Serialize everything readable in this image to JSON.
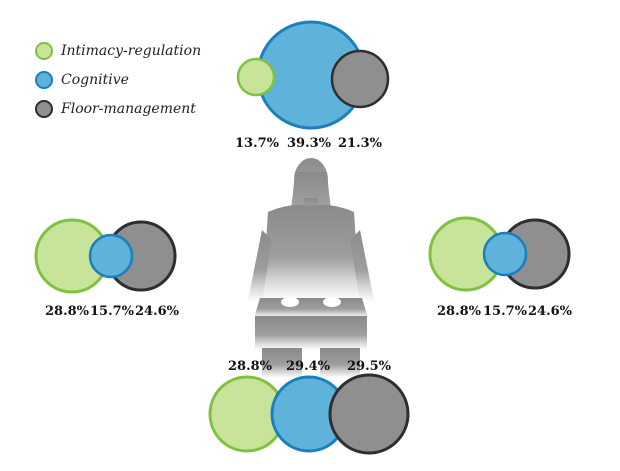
{
  "legend": [
    {
      "label": "Intimacy-regulation",
      "fill": "#c8e39a",
      "stroke": "#7fc242"
    },
    {
      "label": "Cognitive",
      "fill": "#5fb2d9",
      "stroke": "#1a7fbf"
    },
    {
      "label": "Floor-management",
      "fill": "#8f8f8f",
      "stroke": "#2e2e2e"
    }
  ],
  "groups": {
    "top": {
      "intimacy": "13.7%",
      "cognitive": "39.3%",
      "floor": "21.3%"
    },
    "left": {
      "intimacy": "28.8%",
      "cognitive": "15.7%",
      "floor": "24.6%"
    },
    "right": {
      "intimacy": "28.8%",
      "cognitive": "15.7%",
      "floor": "24.6%"
    },
    "bottom": {
      "intimacy": "28.8%",
      "cognitive": "29.4%",
      "floor": "29.5%"
    }
  },
  "figure_icon": "seated-person-silhouette"
}
